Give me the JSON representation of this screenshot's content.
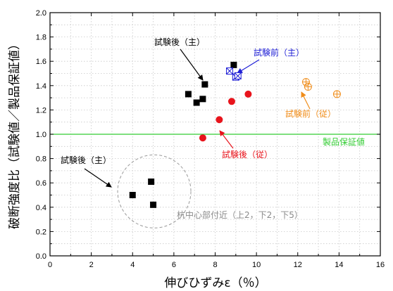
{
  "chart_data": {
    "type": "scatter",
    "xlabel": "伸びひずみε（％）",
    "ylabel": "破断強度比（試験値／製品保証値）",
    "xlim": [
      0,
      16
    ],
    "ylim": [
      0,
      2.0
    ],
    "xticks": [
      "0",
      "2",
      "4",
      "6",
      "8",
      "10",
      "12",
      "14",
      "16"
    ],
    "yticks": [
      "0.0",
      "0.2",
      "0.4",
      "0.6",
      "0.8",
      "1.0",
      "1.2",
      "1.4",
      "1.6",
      "1.8",
      "2.0"
    ],
    "grid": true,
    "reference_line": {
      "y": 1.0,
      "label": "製品保証値",
      "color": "#33cc33"
    },
    "series": [
      {
        "marker": "square-filled",
        "color": "#000000",
        "points": [
          [
            6.7,
            1.33
          ],
          [
            7.1,
            1.26
          ],
          [
            7.4,
            1.29
          ],
          [
            7.5,
            1.41
          ],
          [
            8.9,
            1.57
          ],
          [
            4.0,
            0.5
          ],
          [
            4.9,
            0.61
          ],
          [
            5.0,
            0.42
          ]
        ]
      },
      {
        "marker": "circle-filled",
        "color": "#e8141c",
        "points": [
          [
            7.4,
            0.97
          ],
          [
            8.2,
            1.12
          ],
          [
            8.8,
            1.27
          ],
          [
            9.6,
            1.33
          ]
        ]
      },
      {
        "marker": "square-x",
        "color": "#1f1fd6",
        "points": [
          [
            8.7,
            1.52
          ],
          [
            9.0,
            1.47
          ],
          [
            9.1,
            1.48
          ]
        ]
      },
      {
        "marker": "circle-plus",
        "color": "#f08c18",
        "points": [
          [
            12.4,
            1.43
          ],
          [
            12.5,
            1.39
          ],
          [
            13.9,
            1.33
          ]
        ]
      }
    ],
    "annotations": [
      {
        "id": "ann-after-main-upper",
        "text": "試験後（主）",
        "color": "#000000"
      },
      {
        "id": "ann-before-main",
        "text": "試験前（主）",
        "color": "#1f1fd6"
      },
      {
        "id": "ann-before-sub",
        "text": "試験前（従）",
        "color": "#f08c18"
      },
      {
        "id": "ann-after-sub",
        "text": "試験後（従）",
        "color": "#e8141c"
      },
      {
        "id": "ann-after-main-lower",
        "text": "試験後（主）",
        "color": "#000000"
      },
      {
        "id": "ann-pile-center",
        "text": "杭中心部付近（上2，下2，下5）",
        "color": "#8a8a8a"
      }
    ]
  }
}
